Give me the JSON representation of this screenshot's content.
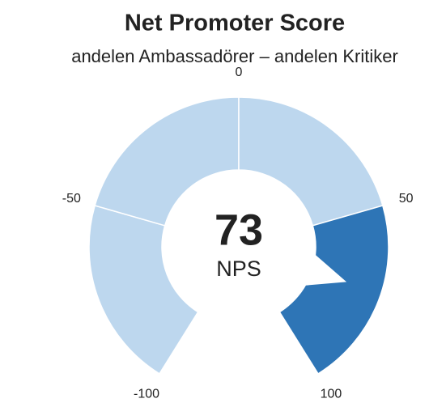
{
  "chart_data": {
    "type": "gauge",
    "title": "Net Promoter Score",
    "subtitle": "andelen Ambassadörer – andelen Kritiker",
    "value": 73,
    "value_caption": "NPS",
    "ylim": [
      -100,
      100
    ],
    "yticks": [
      -100,
      -50,
      0,
      50,
      100
    ],
    "color": "#bdd7ee",
    "highlight_color": "#2e75b6"
  }
}
